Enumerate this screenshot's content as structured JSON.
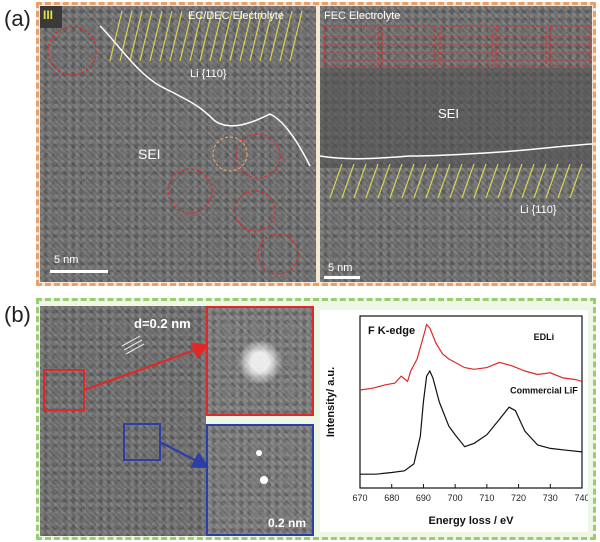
{
  "figure": {
    "panel_a_letter": "(a)",
    "panel_b_letter": "(b)",
    "panel_a_left": {
      "corner_mark": "III",
      "electrolyte_label": "EC/DEC Electrolyte",
      "lattice_label": "Li {110}",
      "sei_label": "SEI",
      "scale_label": "5 nm"
    },
    "panel_a_right": {
      "electrolyte_label": "FEC Electrolyte",
      "sei_label": "SEI",
      "lattice_label": "Li {110}",
      "scale_label": "5 nm"
    },
    "panel_b": {
      "d_spacing_label": "d=0.2 nm",
      "inset_scale_label": "0.2 nm"
    },
    "colors": {
      "frame_a": "#e8a06a",
      "frame_b": "#9ccc72",
      "red": "#e02828",
      "blue": "#2b3fa6",
      "yellow": "#e6e04a"
    }
  },
  "chart_data": {
    "type": "line",
    "title": "F K-edge",
    "xlabel": "Energy loss / eV",
    "ylabel": "Intensity/ a.u.",
    "xlim": [
      670,
      740
    ],
    "x_ticks": [
      670,
      680,
      690,
      700,
      710,
      720,
      730,
      740
    ],
    "grid": false,
    "series": [
      {
        "name": "EDLi",
        "color": "#e02828",
        "x": [
          670,
          674,
          678,
          681,
          683,
          685,
          686,
          688,
          690,
          691,
          692,
          694,
          696,
          698,
          700,
          703,
          706,
          710,
          714,
          718,
          722,
          726,
          730,
          734,
          738,
          740
        ],
        "y": [
          0.57,
          0.58,
          0.6,
          0.61,
          0.65,
          0.62,
          0.68,
          0.75,
          0.88,
          0.95,
          0.93,
          0.84,
          0.78,
          0.75,
          0.73,
          0.7,
          0.69,
          0.7,
          0.73,
          0.71,
          0.68,
          0.66,
          0.67,
          0.64,
          0.63,
          0.62
        ]
      },
      {
        "name": "Commercial LiF",
        "color": "#111111",
        "x": [
          670,
          675,
          680,
          684,
          687,
          689,
          690,
          691,
          692,
          693,
          695,
          698,
          700,
          703,
          706,
          710,
          714,
          717,
          719,
          722,
          726,
          730,
          735,
          740
        ],
        "y": [
          0.08,
          0.08,
          0.09,
          0.1,
          0.14,
          0.3,
          0.5,
          0.65,
          0.68,
          0.64,
          0.5,
          0.36,
          0.31,
          0.24,
          0.26,
          0.31,
          0.4,
          0.47,
          0.45,
          0.33,
          0.25,
          0.23,
          0.22,
          0.21
        ]
      }
    ]
  }
}
